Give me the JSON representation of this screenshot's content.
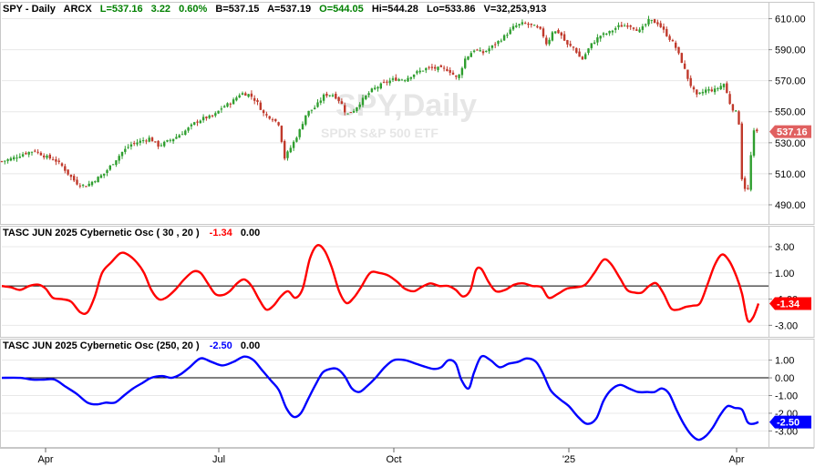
{
  "price_header": {
    "symbol": "SPY - Daily",
    "exchange": "ARCX",
    "last": "L=537.16",
    "change": "3.22",
    "change_pct": "0.60%",
    "bid": "B=537.15",
    "ask": "A=537.19",
    "open": "O=544.05",
    "high": "Hi=544.28",
    "low": "Lo=533.86",
    "volume": "V=32,253,913"
  },
  "watermark": {
    "title": "SPY,Daily",
    "subtitle": "SPDR S&P 500 ETF"
  },
  "osc1_header": {
    "label": "TASC JUN 2025 Cybernetic Osc ( 30 , 20 )",
    "value": "-1.34",
    "zero": "0.00"
  },
  "osc2_header": {
    "label": "TASC JUN 2025 Cybernetic Osc (250, 20 )",
    "value": "-2.50",
    "zero": "0.00"
  },
  "colors": {
    "up": "#2f9e2f",
    "down": "#c0392b",
    "osc1": "#ff0000",
    "osc2": "#0000ff",
    "green_text": "#008000",
    "red_text": "#ff0000",
    "blue_text": "#0000ff",
    "grid": "#e8e8e8",
    "price_tag": "#e06060",
    "osc1_tag": "#ff0000",
    "osc2_tag": "#0000ff"
  },
  "chart_data": [
    {
      "type": "candlestick",
      "ylim": [
        480,
        615
      ],
      "yticks": [
        610,
        590,
        570,
        550,
        530,
        510,
        490
      ],
      "ytick_labels": [
        "610.00",
        "590.00",
        "570.00",
        "550.00",
        "530.00",
        "510.00",
        "490.00"
      ],
      "last_tag": "537.16",
      "last_value": 537.16,
      "grid": true,
      "close_path": [
        [
          0,
          518
        ],
        [
          12,
          520
        ],
        [
          24,
          523
        ],
        [
          36,
          525
        ],
        [
          48,
          521
        ],
        [
          58,
          519
        ],
        [
          66,
          515
        ],
        [
          74,
          509
        ],
        [
          82,
          504
        ],
        [
          92,
          502
        ],
        [
          102,
          506
        ],
        [
          112,
          510
        ],
        [
          122,
          517
        ],
        [
          132,
          524
        ],
        [
          142,
          529
        ],
        [
          152,
          531
        ],
        [
          162,
          533
        ],
        [
          172,
          528
        ],
        [
          182,
          531
        ],
        [
          192,
          534
        ],
        [
          202,
          538
        ],
        [
          212,
          543
        ],
        [
          222,
          546
        ],
        [
          232,
          547
        ],
        [
          242,
          553
        ],
        [
          252,
          556
        ],
        [
          262,
          562
        ],
        [
          272,
          561
        ],
        [
          280,
          556
        ],
        [
          288,
          548
        ],
        [
          296,
          546
        ],
        [
          304,
          542
        ],
        [
          310,
          520
        ],
        [
          318,
          528
        ],
        [
          326,
          537
        ],
        [
          334,
          549
        ],
        [
          344,
          553
        ],
        [
          354,
          561
        ],
        [
          364,
          561
        ],
        [
          372,
          556
        ],
        [
          378,
          548
        ],
        [
          386,
          551
        ],
        [
          396,
          558
        ],
        [
          406,
          564
        ],
        [
          418,
          568
        ],
        [
          430,
          571
        ],
        [
          442,
          571
        ],
        [
          454,
          575
        ],
        [
          466,
          578
        ],
        [
          478,
          578
        ],
        [
          490,
          577
        ],
        [
          500,
          571
        ],
        [
          508,
          584
        ],
        [
          518,
          590
        ],
        [
          528,
          588
        ],
        [
          540,
          593
        ],
        [
          552,
          599
        ],
        [
          562,
          605
        ],
        [
          572,
          607
        ],
        [
          584,
          605
        ],
        [
          592,
          602
        ],
        [
          598,
          593
        ],
        [
          604,
          602
        ],
        [
          612,
          601
        ],
        [
          620,
          593
        ],
        [
          628,
          591
        ],
        [
          636,
          583
        ],
        [
          646,
          593
        ],
        [
          656,
          599
        ],
        [
          666,
          601
        ],
        [
          676,
          605
        ],
        [
          688,
          606
        ],
        [
          700,
          602
        ],
        [
          710,
          609
        ],
        [
          720,
          607
        ],
        [
          730,
          599
        ],
        [
          738,
          593
        ],
        [
          746,
          582
        ],
        [
          754,
          569
        ],
        [
          762,
          560
        ],
        [
          772,
          564
        ],
        [
          782,
          564
        ],
        [
          792,
          568
        ],
        [
          800,
          553
        ],
        [
          808,
          548
        ],
        [
          812,
          505
        ],
        [
          818,
          497
        ],
        [
          824,
          537
        ],
        [
          830,
          537
        ]
      ]
    },
    {
      "type": "line",
      "series": [
        {
          "name": "TASC JUN 2025 Cybernetic Osc ( 30 , 20 )"
        }
      ],
      "ylim": [
        -3.6,
        3.9
      ],
      "yticks": [
        3,
        1,
        -1,
        -3
      ],
      "ytick_labels": [
        "3.00",
        "1.00",
        "-1.00",
        "-3.00"
      ],
      "reference_line": 0,
      "last_tag": "-1.34",
      "last_value": -1.34,
      "points": [
        [
          0,
          0.0
        ],
        [
          10,
          -0.1
        ],
        [
          20,
          -0.3
        ],
        [
          30,
          0.0
        ],
        [
          40,
          0.1
        ],
        [
          48,
          -0.2
        ],
        [
          56,
          -0.9
        ],
        [
          66,
          -1.0
        ],
        [
          76,
          -1.2
        ],
        [
          86,
          -2.0
        ],
        [
          94,
          -2.0
        ],
        [
          102,
          -0.8
        ],
        [
          110,
          1.0
        ],
        [
          120,
          1.8
        ],
        [
          130,
          2.5
        ],
        [
          138,
          2.4
        ],
        [
          148,
          1.8
        ],
        [
          156,
          1.0
        ],
        [
          164,
          -0.3
        ],
        [
          172,
          -1.0
        ],
        [
          180,
          -0.9
        ],
        [
          190,
          -0.3
        ],
        [
          200,
          0.5
        ],
        [
          210,
          1.1
        ],
        [
          218,
          1.0
        ],
        [
          226,
          0.2
        ],
        [
          234,
          -0.6
        ],
        [
          242,
          -0.7
        ],
        [
          250,
          -0.4
        ],
        [
          258,
          0.2
        ],
        [
          266,
          0.5
        ],
        [
          274,
          0.0
        ],
        [
          282,
          -1.0
        ],
        [
          290,
          -1.8
        ],
        [
          298,
          -1.5
        ],
        [
          306,
          -0.8
        ],
        [
          314,
          -0.4
        ],
        [
          322,
          -0.9
        ],
        [
          330,
          -0.2
        ],
        [
          338,
          2.1
        ],
        [
          346,
          3.1
        ],
        [
          354,
          2.7
        ],
        [
          362,
          1.4
        ],
        [
          370,
          -0.4
        ],
        [
          378,
          -1.3
        ],
        [
          386,
          -0.9
        ],
        [
          394,
          -0.1
        ],
        [
          404,
          1.0
        ],
        [
          414,
          1.0
        ],
        [
          424,
          0.8
        ],
        [
          434,
          0.3
        ],
        [
          442,
          -0.2
        ],
        [
          452,
          -0.4
        ],
        [
          460,
          -0.1
        ],
        [
          470,
          0.2
        ],
        [
          480,
          0.0
        ],
        [
          490,
          0.0
        ],
        [
          498,
          -0.3
        ],
        [
          506,
          -0.8
        ],
        [
          514,
          -0.3
        ],
        [
          520,
          1.2
        ],
        [
          526,
          1.3
        ],
        [
          534,
          0.3
        ],
        [
          542,
          -0.4
        ],
        [
          552,
          -0.3
        ],
        [
          562,
          0.1
        ],
        [
          572,
          0.2
        ],
        [
          582,
          0.0
        ],
        [
          592,
          -0.1
        ],
        [
          600,
          -0.9
        ],
        [
          610,
          -0.6
        ],
        [
          620,
          -0.2
        ],
        [
          630,
          -0.1
        ],
        [
          640,
          0.1
        ],
        [
          650,
          1.0
        ],
        [
          660,
          2.0
        ],
        [
          668,
          1.7
        ],
        [
          678,
          0.6
        ],
        [
          686,
          -0.3
        ],
        [
          694,
          -0.5
        ],
        [
          702,
          -0.5
        ],
        [
          710,
          0.0
        ],
        [
          718,
          0.2
        ],
        [
          726,
          -0.6
        ],
        [
          734,
          -1.7
        ],
        [
          742,
          -1.8
        ],
        [
          750,
          -1.6
        ],
        [
          758,
          -1.5
        ],
        [
          766,
          -1.3
        ],
        [
          774,
          0.1
        ],
        [
          782,
          1.6
        ],
        [
          790,
          2.4
        ],
        [
          798,
          1.9
        ],
        [
          806,
          0.7
        ],
        [
          812,
          -0.6
        ],
        [
          818,
          -2.6
        ],
        [
          824,
          -2.4
        ],
        [
          830,
          -1.34
        ]
      ]
    },
    {
      "type": "line",
      "series": [
        {
          "name": "TASC JUN 2025 Cybernetic Osc (250, 20 )"
        }
      ],
      "ylim": [
        -3.7,
        1.7
      ],
      "yticks": [
        1,
        0,
        -1,
        -2,
        -3
      ],
      "ytick_labels": [
        "1.00",
        "0.00",
        "-1.00",
        "-2.00",
        "-3.00"
      ],
      "reference_line": 0,
      "last_tag": "-2.50",
      "last_value": -2.5,
      "points": [
        [
          0,
          0.0
        ],
        [
          20,
          0.0
        ],
        [
          34,
          -0.1
        ],
        [
          46,
          -0.1
        ],
        [
          58,
          -0.1
        ],
        [
          70,
          -0.5
        ],
        [
          82,
          -0.9
        ],
        [
          94,
          -1.4
        ],
        [
          104,
          -1.5
        ],
        [
          114,
          -1.4
        ],
        [
          124,
          -1.4
        ],
        [
          134,
          -1.0
        ],
        [
          144,
          -0.6
        ],
        [
          154,
          -0.3
        ],
        [
          164,
          0.0
        ],
        [
          176,
          0.1
        ],
        [
          186,
          0.0
        ],
        [
          196,
          0.2
        ],
        [
          206,
          0.6
        ],
        [
          218,
          1.1
        ],
        [
          230,
          0.9
        ],
        [
          242,
          0.7
        ],
        [
          254,
          0.9
        ],
        [
          266,
          1.2
        ],
        [
          276,
          1.0
        ],
        [
          286,
          0.4
        ],
        [
          296,
          -0.2
        ],
        [
          304,
          -0.7
        ],
        [
          312,
          -1.7
        ],
        [
          320,
          -2.2
        ],
        [
          328,
          -2.0
        ],
        [
          336,
          -1.2
        ],
        [
          344,
          -0.4
        ],
        [
          352,
          0.3
        ],
        [
          360,
          0.5
        ],
        [
          368,
          0.5
        ],
        [
          376,
          0.1
        ],
        [
          384,
          -0.6
        ],
        [
          392,
          -0.8
        ],
        [
          400,
          -0.5
        ],
        [
          410,
          0.0
        ],
        [
          420,
          0.6
        ],
        [
          430,
          1.0
        ],
        [
          442,
          1.0
        ],
        [
          454,
          0.8
        ],
        [
          466,
          0.6
        ],
        [
          474,
          0.5
        ],
        [
          482,
          0.6
        ],
        [
          490,
          1.0
        ],
        [
          498,
          0.8
        ],
        [
          504,
          -0.1
        ],
        [
          512,
          -0.6
        ],
        [
          518,
          0.3
        ],
        [
          526,
          1.2
        ],
        [
          536,
          1.0
        ],
        [
          546,
          0.6
        ],
        [
          556,
          0.8
        ],
        [
          566,
          0.9
        ],
        [
          576,
          1.1
        ],
        [
          586,
          0.9
        ],
        [
          594,
          0.2
        ],
        [
          602,
          -0.7
        ],
        [
          612,
          -1.2
        ],
        [
          622,
          -1.6
        ],
        [
          632,
          -2.2
        ],
        [
          642,
          -2.6
        ],
        [
          652,
          -2.3
        ],
        [
          660,
          -1.3
        ],
        [
          668,
          -0.7
        ],
        [
          678,
          -0.4
        ],
        [
          688,
          -0.6
        ],
        [
          698,
          -0.8
        ],
        [
          708,
          -0.8
        ],
        [
          716,
          -0.8
        ],
        [
          724,
          -0.6
        ],
        [
          732,
          -0.9
        ],
        [
          740,
          -1.8
        ],
        [
          748,
          -2.6
        ],
        [
          756,
          -3.2
        ],
        [
          764,
          -3.5
        ],
        [
          772,
          -3.3
        ],
        [
          780,
          -2.8
        ],
        [
          788,
          -2.1
        ],
        [
          796,
          -1.6
        ],
        [
          804,
          -1.7
        ],
        [
          812,
          -1.8
        ],
        [
          818,
          -2.5
        ],
        [
          824,
          -2.6
        ],
        [
          830,
          -2.5
        ]
      ]
    }
  ],
  "x_axis": {
    "labels": [
      "Apr",
      "Jul",
      "Oct",
      "'25",
      "Apr"
    ],
    "positions": [
      48,
      238,
      430,
      622,
      806
    ]
  }
}
